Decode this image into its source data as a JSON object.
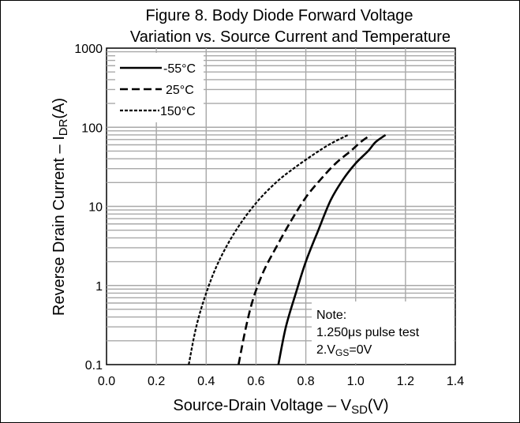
{
  "chart_data": {
    "type": "line",
    "title_line1": "Figure 8. Body Diode Forward Voltage",
    "title_line2": "Variation vs. Source Current and Temperature",
    "xlabel_main": "Source-Drain Voltage – V",
    "xlabel_sub": "SD",
    "xlabel_tail": "(V)",
    "ylabel_main": "Reverse Drain Current – I",
    "ylabel_sub": "DR",
    "ylabel_tail": "(A)",
    "xlim": [
      0.0,
      1.4
    ],
    "ylim": [
      0.1,
      1000
    ],
    "yscale": "log",
    "x_ticks": [
      "0.0",
      "0.2",
      "0.4",
      "0.6",
      "0.8",
      "1.0",
      "1.2",
      "1.4"
    ],
    "y_ticks": [
      "0.1",
      "1",
      "10",
      "100",
      "1000"
    ],
    "grid": true,
    "legend_position": "top-left",
    "series": [
      {
        "name": "-55°C",
        "style": "solid",
        "x": [
          0.69,
          0.72,
          0.76,
          0.8,
          0.85,
          0.9,
          0.95,
          1.0,
          1.05,
          1.08,
          1.12
        ],
        "y": [
          0.1,
          0.3,
          0.8,
          2.0,
          5.0,
          12,
          22,
          35,
          50,
          65,
          80
        ]
      },
      {
        "name": "25°C",
        "style": "dashed",
        "x": [
          0.53,
          0.56,
          0.59,
          0.63,
          0.68,
          0.74,
          0.8,
          0.86,
          0.92,
          0.98,
          1.02,
          1.06
        ],
        "y": [
          0.1,
          0.3,
          0.7,
          1.5,
          3.0,
          6.5,
          13,
          22,
          35,
          50,
          65,
          80
        ]
      },
      {
        "name": "150°C",
        "style": "dotted",
        "x": [
          0.33,
          0.36,
          0.4,
          0.45,
          0.52,
          0.6,
          0.68,
          0.75,
          0.83,
          0.9,
          0.97
        ],
        "y": [
          0.1,
          0.3,
          0.8,
          2.0,
          5.0,
          11,
          20,
          30,
          45,
          62,
          80
        ]
      }
    ],
    "note_title": "Note:",
    "note_line1": "1.250μs pulse test",
    "note_line2_main": "2.V",
    "note_line2_sub": "GS",
    "note_line2_tail": "=0V"
  }
}
